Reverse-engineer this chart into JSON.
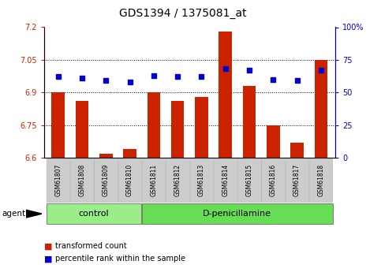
{
  "title": "GDS1394 / 1375081_at",
  "samples": [
    "GSM61807",
    "GSM61808",
    "GSM61809",
    "GSM61810",
    "GSM61811",
    "GSM61812",
    "GSM61813",
    "GSM61814",
    "GSM61815",
    "GSM61816",
    "GSM61817",
    "GSM61818"
  ],
  "red_values": [
    6.9,
    6.86,
    6.62,
    6.64,
    6.9,
    6.86,
    6.88,
    7.18,
    6.93,
    6.75,
    6.67,
    7.05
  ],
  "blue_percentiles": [
    62,
    61,
    59,
    58,
    63,
    62,
    62,
    68,
    67,
    60,
    59,
    67
  ],
  "y_min": 6.6,
  "y_max": 7.2,
  "y_ticks": [
    6.6,
    6.75,
    6.9,
    7.05,
    7.2
  ],
  "y_right_ticks": [
    0,
    25,
    50,
    75,
    100
  ],
  "bar_color": "#cc2200",
  "dot_color": "#0000cc",
  "n_control": 4,
  "n_treatment": 8,
  "control_label": "control",
  "treatment_label": "D-penicillamine",
  "agent_label": "agent",
  "legend_red": "transformed count",
  "legend_blue": "percentile rank within the sample",
  "group_bg_control": "#99ee88",
  "group_bg_treatment": "#66dd55",
  "title_fontsize": 10,
  "tick_fontsize": 7,
  "label_fontsize": 5.5,
  "group_fontsize": 8,
  "bar_baseline": 6.6
}
